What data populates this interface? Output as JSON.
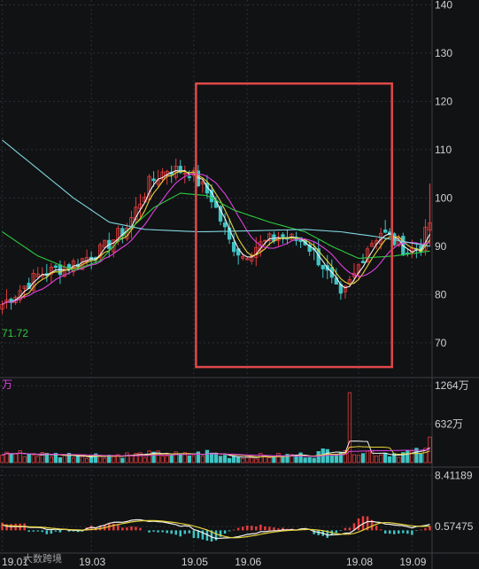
{
  "chart_data": {
    "type": "candlestick",
    "price_axis": {
      "ticks": [
        140,
        130,
        120,
        110,
        100,
        90,
        80,
        70
      ],
      "range": [
        63,
        141
      ]
    },
    "volume_axis": {
      "ticks": [
        "1264万",
        "632万"
      ],
      "values": [
        1264,
        632
      ],
      "range": [
        0,
        1340
      ]
    },
    "macd_axis": {
      "ticks": [
        "8.41189",
        "0.57475"
      ],
      "values": [
        8.41189,
        0.57475
      ],
      "range": [
        -3.2,
        9.0
      ]
    },
    "x_ticks": [
      "19.01",
      "19.03",
      "19.05",
      "19.06",
      "19.08",
      "19.09"
    ],
    "price_series_anchors": [
      [
        0,
        78
      ],
      [
        8,
        84
      ],
      [
        15,
        86
      ],
      [
        22,
        89
      ],
      [
        28,
        94
      ],
      [
        33,
        103
      ],
      [
        37,
        106
      ],
      [
        42,
        105.5
      ],
      [
        47,
        100
      ],
      [
        51,
        91
      ],
      [
        54,
        88
      ],
      [
        57,
        90
      ],
      [
        62,
        92
      ],
      [
        68,
        91
      ],
      [
        72,
        86
      ],
      [
        76,
        79
      ],
      [
        79,
        84
      ],
      [
        82,
        90
      ],
      [
        85,
        93
      ],
      [
        88,
        91
      ],
      [
        91,
        89
      ],
      [
        94,
        90
      ],
      [
        96,
        95
      ]
    ],
    "ma_long_anchors": [
      [
        0,
        112
      ],
      [
        8,
        106
      ],
      [
        16,
        100
      ],
      [
        24,
        95
      ],
      [
        32,
        93.5
      ],
      [
        44,
        93
      ],
      [
        56,
        93.2
      ],
      [
        68,
        93.5
      ],
      [
        76,
        93
      ],
      [
        84,
        92
      ],
      [
        96,
        90
      ]
    ],
    "ma_mid_anchors": [
      [
        0,
        93
      ],
      [
        8,
        88
      ],
      [
        16,
        85
      ],
      [
        22,
        87
      ],
      [
        28,
        93
      ],
      [
        34,
        98
      ],
      [
        40,
        101
      ],
      [
        46,
        100.5
      ],
      [
        52,
        97.5
      ],
      [
        60,
        95
      ],
      [
        68,
        93
      ],
      [
        74,
        90
      ],
      [
        80,
        87.5
      ],
      [
        88,
        88
      ],
      [
        96,
        89
      ]
    ],
    "volume_anchors": [
      [
        0,
        160
      ],
      [
        10,
        130
      ],
      [
        20,
        120
      ],
      [
        30,
        130
      ],
      [
        36,
        140
      ],
      [
        42,
        120
      ],
      [
        46,
        160
      ],
      [
        50,
        110
      ],
      [
        60,
        105
      ],
      [
        70,
        130
      ],
      [
        75,
        230
      ],
      [
        78,
        250
      ],
      [
        82,
        180
      ],
      [
        88,
        150
      ],
      [
        96,
        180
      ]
    ],
    "macd_anchors": [
      [
        0,
        0.8
      ],
      [
        10,
        0.2
      ],
      [
        18,
        0.0
      ],
      [
        24,
        1.0
      ],
      [
        30,
        1.6
      ],
      [
        36,
        1.2
      ],
      [
        42,
        0.5
      ],
      [
        48,
        -1.2
      ],
      [
        52,
        -1.0
      ],
      [
        60,
        0.0
      ],
      [
        68,
        0.2
      ],
      [
        74,
        -0.8
      ],
      [
        78,
        -0.3
      ],
      [
        82,
        1.4
      ],
      [
        86,
        1.0
      ],
      [
        92,
        0.4
      ],
      [
        96,
        0.8
      ]
    ],
    "ma_label": "71.72",
    "volume_unit": "万",
    "highlight_box": {
      "from": 44,
      "to": 87,
      "price_top": 123.7,
      "price_bottom": 65
    },
    "colors": {
      "up": "#e63b3b",
      "down": "#3fc4c4",
      "ma_short": "#f2f2f2",
      "ma_yellow": "#e6d33a",
      "ma_magenta": "#e040e0",
      "ma_green": "#2ecc40",
      "ma_cyan": "#7fd6e0",
      "box": "#e04848",
      "grid": "#2c2f36"
    }
  },
  "watermark": "大数跨境"
}
